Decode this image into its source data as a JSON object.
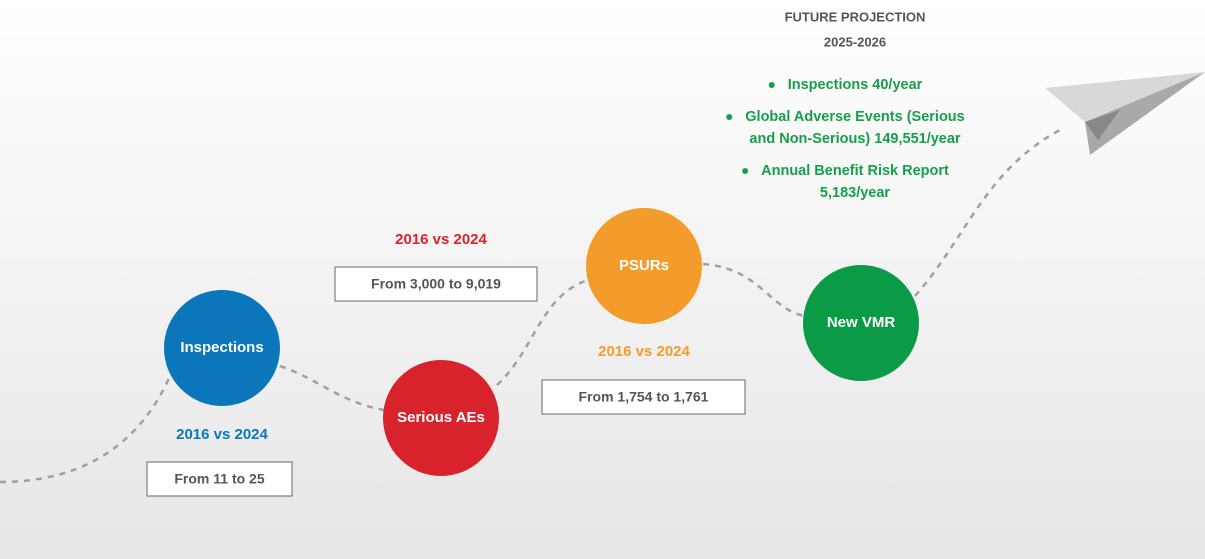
{
  "milestones": [
    {
      "label": "Inspections",
      "color": "#0b76ba",
      "period": "2016 vs 2024",
      "range": "From 11 to 25"
    },
    {
      "label": "Serious AEs",
      "color": "#d8232c",
      "period": "2016 vs 2024",
      "range": "From 3,000 to 9,019"
    },
    {
      "label": "PSURs",
      "color": "#f39c2b",
      "period": "2016 vs 2024",
      "range": "From 1,754 to 1,761"
    },
    {
      "label": "New VMR",
      "color": "#0b9a45"
    }
  ],
  "projection": {
    "title": "FUTURE PROJECTION",
    "years": "2025-2026",
    "color": "#14a04b",
    "bullets": [
      [
        "Inspections 40/year"
      ],
      [
        "Global Adverse Events (Serious",
        "and Non-Serious) 149,551/year"
      ],
      [
        "Annual Benefit Risk Report",
        "5,183/year"
      ]
    ]
  }
}
